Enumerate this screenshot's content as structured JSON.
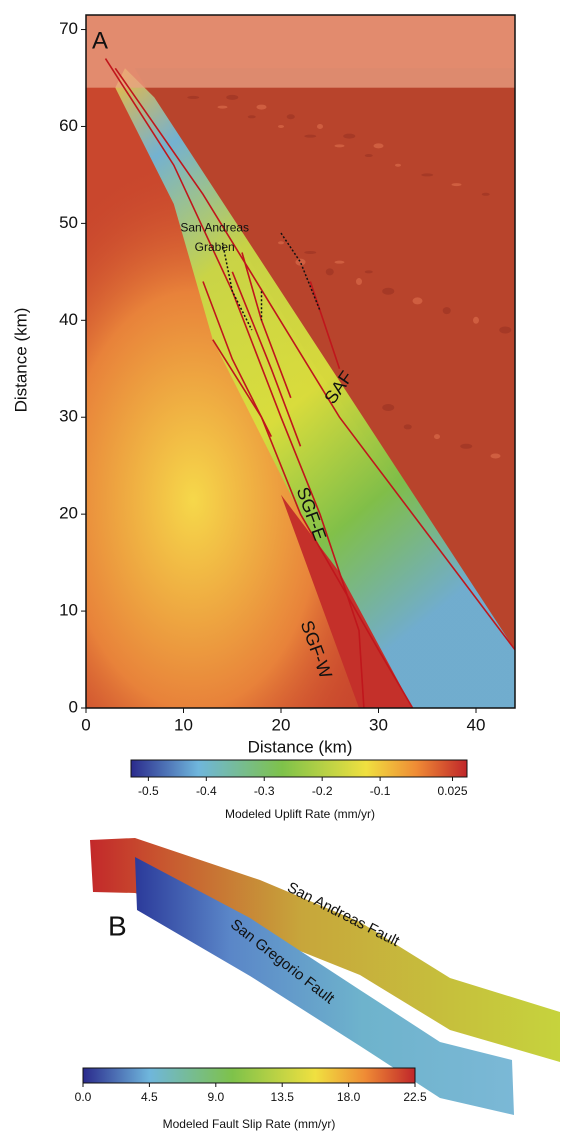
{
  "panel_a": {
    "label": "A",
    "xlabel": "Distance (km)",
    "ylabel": "Distance (km)",
    "xlim": [
      0,
      44
    ],
    "ylim": [
      0,
      71.5
    ],
    "xticks": [
      0,
      10,
      20,
      30,
      40
    ],
    "yticks": [
      0,
      10,
      20,
      30,
      40,
      50,
      60,
      70
    ],
    "annotations": [
      "San Andreas",
      "Graben",
      "SAF",
      "SGF-E",
      "SGF-W"
    ]
  },
  "colorbar_a": {
    "label": "Modeled Uplift Rate (mm/yr)",
    "clim": [
      -0.53,
      0.05
    ],
    "ticks": [
      -0.5,
      -0.4,
      -0.3,
      -0.2,
      -0.1,
      0.025
    ]
  },
  "panel_b": {
    "label": "B",
    "faults": [
      "San Andreas Fault",
      "San Gregorio Fault"
    ]
  },
  "colorbar_b": {
    "label": "Modeled Fault Slip Rate (mm/yr)",
    "clim": [
      0,
      22.5
    ],
    "ticks": [
      {
        "value": 0,
        "label": "0.0"
      },
      4.5,
      {
        "value": 9,
        "label": "9.0"
      },
      13.5,
      {
        "value": 18,
        "label": "18.0"
      },
      22.5
    ]
  }
}
